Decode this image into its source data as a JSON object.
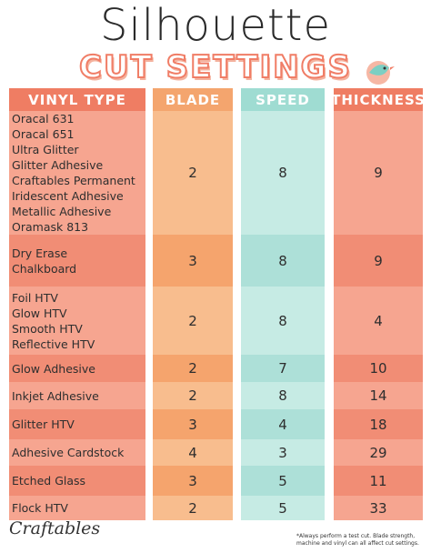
{
  "header": {
    "title": "Silhouette",
    "subtitle": "CUT SETTINGS"
  },
  "table": {
    "columns": [
      "VINYL TYPE",
      "BLADE",
      "SPEED",
      "THICKNESS"
    ],
    "rows": [
      {
        "vinyl": [
          "Oracal 631",
          "Oracal 651",
          "Ultra Glitter",
          "Glitter Adhesive",
          "Craftables Permanent",
          "Iridescent Adhesive",
          "Metallic Adhesive",
          "Oramask 813"
        ],
        "blade": 2,
        "speed": 8,
        "thickness": 9
      },
      {
        "vinyl": [
          "Dry Erase",
          "Chalkboard"
        ],
        "blade": 3,
        "speed": 8,
        "thickness": 9
      },
      {
        "vinyl": [
          "Foil HTV",
          "Glow HTV",
          "Smooth HTV",
          "Reflective HTV"
        ],
        "blade": 2,
        "speed": 8,
        "thickness": 4
      },
      {
        "vinyl": [
          "Glow Adhesive"
        ],
        "blade": 2,
        "speed": 7,
        "thickness": 10
      },
      {
        "vinyl": [
          "Inkjet Adhesive"
        ],
        "blade": 2,
        "speed": 8,
        "thickness": 14
      },
      {
        "vinyl": [
          "Glitter HTV"
        ],
        "blade": 3,
        "speed": 4,
        "thickness": 18
      },
      {
        "vinyl": [
          "Adhesive Cardstock"
        ],
        "blade": 4,
        "speed": 3,
        "thickness": 29
      },
      {
        "vinyl": [
          "Etched Glass"
        ],
        "blade": 3,
        "speed": 5,
        "thickness": 11
      },
      {
        "vinyl": [
          "Flock HTV"
        ],
        "blade": 2,
        "speed": 5,
        "thickness": 33
      }
    ]
  },
  "footer": {
    "brand": "Craftables",
    "note": "*Always perform a test cut. Blade strength, machine and vinyl can all affect cut settings."
  }
}
